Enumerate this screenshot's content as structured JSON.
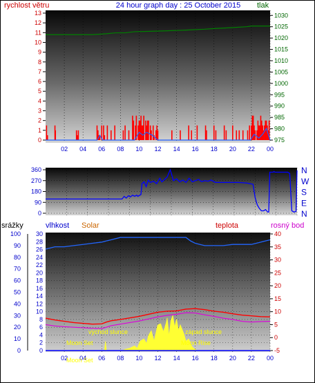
{
  "header": {
    "left_label": "rychlost větru",
    "title": "24 hour graph day : 25 October 2015",
    "right_label": "tlak"
  },
  "colors": {
    "wind": "#ff0000",
    "gust": "#2060ff",
    "pressure": "#008000",
    "direction": "#0000ff",
    "humidity": "#2266ff",
    "temperature": "#ff0000",
    "dewpoint": "#dd00dd",
    "solar": "#ffff33",
    "axis_red": "#cc0000",
    "axis_blue": "#0000cc",
    "axis_green": "#006600",
    "solar_label": "#cc6600",
    "moon_text": "#ffff00"
  },
  "x_ticks": [
    "02",
    "04",
    "06",
    "08",
    "10",
    "12",
    "14",
    "16",
    "18",
    "20",
    "22",
    "00"
  ],
  "chart_data": [
    {
      "type": "line",
      "name": "wind-pressure",
      "y_left_ticks": [
        "0",
        "1",
        "2",
        "3",
        "4",
        "5",
        "6",
        "7",
        "8",
        "9",
        "10",
        "11",
        "12",
        "13"
      ],
      "y_right_ticks": [
        "975",
        "980",
        "985",
        "990",
        "995",
        "1000",
        "1005",
        "1010",
        "1015",
        "1020",
        "1025",
        "1030"
      ],
      "ylim_left": [
        0,
        13
      ],
      "ylim_right": [
        975,
        1031
      ],
      "series": [
        {
          "name": "rychlost větru",
          "axis": "left",
          "style": "bars",
          "x": [
            0.1,
            0.2,
            1.0,
            1.05,
            3.3,
            3.4,
            3.5,
            5.5,
            5.6,
            5.7,
            5.8,
            6.0,
            6.2,
            6.3,
            6.6,
            7.0,
            7.4,
            8.3,
            8.5,
            8.9,
            9.3,
            9.4,
            9.6,
            9.7,
            9.9,
            10.0,
            10.1,
            10.2,
            10.3,
            10.4,
            10.5,
            10.7,
            10.8,
            10.9,
            11.0,
            11.2,
            11.3,
            11.5,
            11.6,
            11.8,
            11.9,
            12.0,
            13.5,
            14.4,
            15.3,
            15.6,
            16.2,
            17.1,
            17.2,
            18.0,
            18.2,
            19.1,
            19.3,
            20.0,
            20.4,
            20.7,
            21.1,
            21.6,
            21.8,
            22.0,
            22.1,
            22.2,
            22.3,
            22.4,
            22.6,
            22.7,
            22.8,
            22.9,
            23.0,
            23.1,
            23.2,
            23.3,
            23.4,
            23.5,
            23.6,
            23.7,
            23.8,
            23.9
          ],
          "values": [
            1.5,
            0.5,
            1.5,
            1.0,
            1.0,
            0.5,
            1.0,
            1.5,
            1.0,
            0.5,
            0.5,
            1.5,
            1.5,
            0.5,
            1.5,
            1.0,
            1.5,
            1.0,
            1.5,
            1.0,
            2.5,
            2.0,
            1.5,
            2.5,
            1.5,
            2.0,
            2.0,
            2.5,
            1.5,
            1.5,
            2.5,
            2.0,
            1.5,
            2.0,
            2.0,
            1.5,
            1.0,
            1.5,
            0.5,
            1.0,
            1.5,
            1.0,
            1.0,
            1.0,
            1.5,
            1.0,
            1.5,
            1.5,
            1.0,
            1.5,
            1.0,
            1.5,
            1.0,
            1.5,
            1.0,
            1.0,
            1.0,
            1.0,
            1.5,
            1.5,
            2.5,
            2.5,
            1.5,
            1.0,
            1.0,
            2.0,
            1.5,
            1.5,
            2.5,
            2.0,
            1.5,
            1.0,
            1.5,
            2.0,
            2.0,
            1.5,
            1.0,
            2.0
          ]
        },
        {
          "name": "náraz",
          "axis": "left",
          "style": "line",
          "x": [
            0,
            3,
            5.5,
            5.8,
            6.1,
            8.4,
            9.5,
            10.0,
            10.4,
            10.8,
            11.4,
            12.0,
            15.0,
            21.9,
            22.3,
            22.8,
            23.2,
            23.6,
            24.0
          ],
          "values": [
            0,
            0,
            0,
            0.5,
            0,
            0,
            0,
            0.8,
            0.5,
            0.8,
            0.5,
            0,
            0,
            0,
            0.6,
            0.2,
            0.6,
            1.2,
            0
          ]
        },
        {
          "name": "tlak",
          "axis": "right",
          "style": "line",
          "x": [
            0,
            5.0,
            6.5,
            7.5,
            8.5,
            9.5,
            10.5,
            13.0,
            15.0,
            17.0,
            18.0,
            19.5,
            21.5,
            22.0,
            23.0,
            24.0
          ],
          "values": [
            1021.5,
            1021.5,
            1021.9,
            1022.3,
            1022.3,
            1022.8,
            1022.9,
            1023.2,
            1023.5,
            1023.9,
            1024.2,
            1024.5,
            1025.0,
            1025.3,
            1025.3,
            1025.3
          ]
        }
      ]
    },
    {
      "type": "line",
      "name": "wind-direction",
      "y_left_ticks": [
        "0",
        "90",
        "180",
        "270",
        "360"
      ],
      "y_right_ticks": [
        "N",
        "W",
        "S",
        "E",
        "N"
      ],
      "ylim": [
        0,
        360
      ],
      "series": [
        {
          "name": "směr větru",
          "x": [
            0,
            7.3,
            7.5,
            7.7,
            7.9,
            8.1,
            8.3,
            8.5,
            8.7,
            8.8,
            9.0,
            9.1,
            9.2,
            9.4,
            9.6,
            9.8,
            10.0,
            10.3,
            10.6,
            10.9,
            11.1,
            11.3,
            11.6,
            11.9,
            12.2,
            12.5,
            12.8,
            13.1,
            13.4,
            13.7,
            14.0,
            14.3,
            14.6,
            14.9,
            15.2,
            15.5,
            15.8,
            16.2,
            16.8,
            17.6,
            18.4,
            19.2,
            19.8,
            20.0,
            20.2,
            20.4,
            20.6,
            20.8,
            21.0,
            21.1,
            21.2,
            21.3,
            21.4,
            21.5,
            21.7,
            21.8,
            21.9,
            22.1,
            22.3,
            22.5,
            22.7,
            22.9,
            23.1,
            23.3,
            23.5,
            23.7,
            23.9,
            24.0
          ],
          "values": [
            118,
            118,
            140,
            125,
            145,
            135,
            150,
            140,
            150,
            140,
            150,
            155,
            245,
            260,
            220,
            275,
            255,
            265,
            245,
            290,
            260,
            275,
            300,
            360,
            270,
            285,
            260,
            275,
            255,
            290,
            260,
            270,
            280,
            262,
            270,
            265,
            275,
            255,
            255,
            255,
            255,
            250,
            240,
            130,
            70,
            40,
            20,
            20,
            30,
            20,
            10,
            10,
            340,
            340,
            340,
            345,
            340,
            340,
            340,
            340,
            340,
            340,
            340,
            330,
            20,
            10,
            15,
            355
          ]
        }
      ]
    },
    {
      "type": "line",
      "name": "rain-humidity-solar-temperature",
      "left_labels": [
        "srážky",
        "vlhkost",
        "Solar"
      ],
      "right_labels": [
        "teplota",
        "rosný bod"
      ],
      "y_rain_ticks": [
        "0",
        "10",
        "20",
        "30",
        "40",
        "50",
        "60",
        "70",
        "80",
        "90",
        "100"
      ],
      "y_hum_ticks": [
        "0",
        "2",
        "4",
        "6",
        "8",
        "10",
        "12",
        "14",
        "16",
        "18",
        "20",
        "22",
        "24",
        "26",
        "28",
        "30"
      ],
      "y_temp_ticks": [
        "-5",
        "0",
        "5",
        "10",
        "15",
        "20",
        "25",
        "30",
        "35",
        "40"
      ],
      "ylim_humidity": [
        0,
        100
      ],
      "ylim_temperature": [
        -5,
        40
      ],
      "annotations": [
        "východ slunce",
        "západ slunce",
        "Moon Set",
        "Moon Set",
        "Moon Rise"
      ],
      "series": [
        {
          "name": "vlhkost",
          "axis": "humidity",
          "x": [
            0,
            1,
            2,
            3,
            4,
            5,
            6,
            6.5,
            7,
            8,
            9,
            10,
            11,
            12,
            13,
            14,
            15,
            15.5,
            16,
            16.5,
            17,
            18,
            19,
            20,
            21,
            22,
            23,
            24
          ],
          "values": [
            87,
            89,
            89,
            90,
            91,
            92,
            93,
            94,
            95,
            97,
            97,
            97,
            97,
            97,
            97,
            97,
            97,
            94,
            92,
            91,
            90,
            90,
            90,
            91,
            91,
            91,
            93,
            95
          ]
        },
        {
          "name": "teplota",
          "axis": "temperature",
          "x": [
            0,
            1,
            2,
            3,
            4,
            5,
            6,
            6.5,
            7,
            8,
            9,
            10,
            11,
            12,
            13,
            14,
            15,
            16,
            17,
            18,
            19,
            20,
            21,
            22,
            23,
            24
          ],
          "values": [
            7.5,
            6.8,
            6.3,
            5.8,
            5.5,
            5.2,
            5.3,
            6.0,
            6.5,
            7.0,
            7.6,
            8.2,
            9.0,
            9.8,
            10.2,
            10.3,
            11.0,
            11.2,
            10.8,
            10.2,
            9.8,
            9.2,
            8.7,
            8.4,
            8.1,
            8.0
          ]
        },
        {
          "name": "rosný bod",
          "axis": "temperature",
          "x": [
            0,
            1,
            2,
            3,
            4,
            5,
            6,
            6.5,
            7,
            8,
            9,
            10,
            11,
            12,
            13,
            14,
            15,
            16,
            17,
            18,
            19,
            20,
            21,
            22,
            23,
            24
          ],
          "values": [
            5.0,
            4.5,
            4.2,
            4.0,
            3.8,
            3.6,
            3.5,
            4.0,
            4.6,
            5.2,
            5.8,
            6.4,
            7.2,
            8.0,
            8.6,
            9.0,
            9.6,
            9.5,
            8.8,
            8.2,
            7.5,
            7.0,
            6.3,
            6.0,
            6.2,
            6.3
          ]
        },
        {
          "name": "Solar",
          "axis": "humidity",
          "style": "area",
          "x": [
            6.3,
            6.4,
            6.5,
            8.2,
            8.5,
            9.0,
            9.5,
            9.8,
            10.1,
            10.5,
            10.8,
            11.0,
            11.3,
            11.6,
            11.9,
            12.0,
            12.3,
            12.6,
            12.9,
            13.0,
            13.2,
            13.4,
            13.6,
            13.8,
            14.0,
            14.2,
            14.4,
            14.6,
            14.8,
            15.0,
            15.3,
            15.6,
            15.8,
            16.0,
            16.2
          ],
          "values": [
            0,
            8,
            0,
            0,
            1,
            2,
            4,
            2,
            8,
            10,
            6,
            13,
            17,
            8,
            19,
            22,
            23,
            16,
            24,
            28,
            12,
            26,
            30,
            20,
            27,
            17,
            22,
            18,
            14,
            8,
            10,
            4,
            2,
            1,
            0
          ]
        }
      ]
    }
  ]
}
